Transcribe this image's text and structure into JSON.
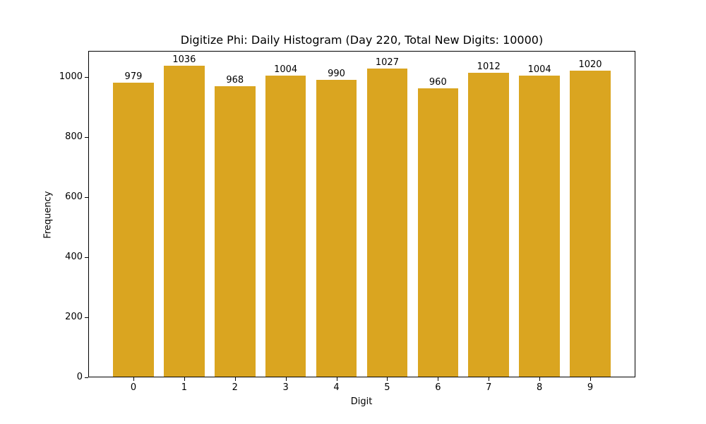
{
  "chart_data": {
    "type": "bar",
    "title": "Digitize Phi: Daily Histogram (Day 220, Total New Digits: 10000)",
    "xlabel": "Digit",
    "ylabel": "Frequency",
    "categories": [
      "0",
      "1",
      "2",
      "3",
      "4",
      "5",
      "6",
      "7",
      "8",
      "9"
    ],
    "values": [
      979,
      1036,
      968,
      1004,
      990,
      1027,
      960,
      1012,
      1004,
      1020
    ],
    "bar_labels": [
      "979",
      "1036",
      "968",
      "1004",
      "990",
      "1027",
      "960",
      "1012",
      "1004",
      "1020"
    ],
    "yticks": [
      "0",
      "200",
      "400",
      "600",
      "800",
      "1000"
    ],
    "ylim": [
      0,
      1088
    ],
    "grid": false,
    "legend": null,
    "bar_color": "#DAA520"
  }
}
